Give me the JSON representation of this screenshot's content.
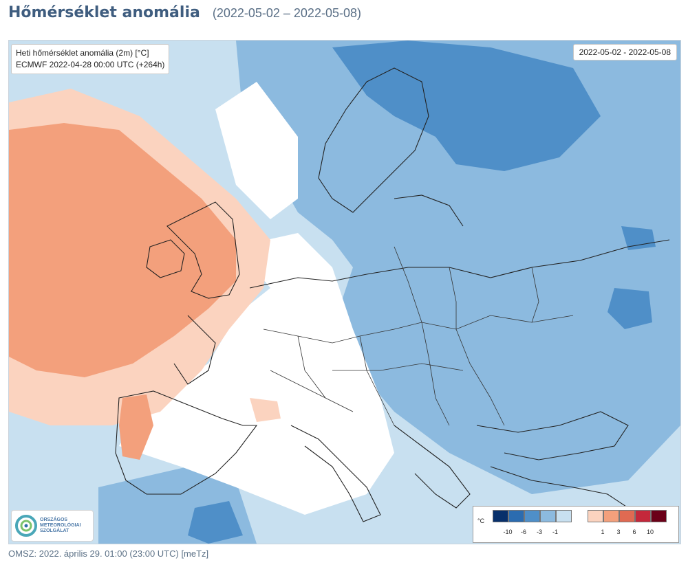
{
  "header": {
    "title": "Hőmérséklet anomália",
    "date_range": "(2022-05-02 – 2022-05-08)"
  },
  "map": {
    "info_line1": "Heti hőmérséklet anomália (2m) [°C]",
    "info_line2": "ECMWF 2022-04-28 00:00 UTC (+264h)",
    "period_label": "2022-05-02 - 2022-05-08",
    "logo_text": [
      "ORSZÁGOS",
      "METEOROLÓGIAI",
      "SZOLGÁLAT"
    ]
  },
  "legend": {
    "unit": "°C",
    "cold_labels": [
      "-10",
      "-6",
      "-3",
      "-1"
    ],
    "warm_labels": [
      "1",
      "3",
      "6",
      "10"
    ],
    "cold_colors": [
      "#08306b",
      "#2b6cb0",
      "#4f8fc8",
      "#8cbadf",
      "#c8e0f0"
    ],
    "warm_colors": [
      "#fbd3bf",
      "#f3a07c",
      "#e06a52",
      "#c4283b",
      "#6b0018"
    ]
  },
  "footer": {
    "text": "OMSZ: 2022. április 29. 01:00 (23:00  UTC)  [meTz]"
  },
  "colors": {
    "title": "#3f5d7f",
    "neutral": "#ffffff",
    "light_blue": "#c8e0f0",
    "blue": "#8cbadf",
    "mid_blue": "#4f8fc8",
    "light_orange": "#fbd3bf",
    "orange": "#f3a07c"
  }
}
